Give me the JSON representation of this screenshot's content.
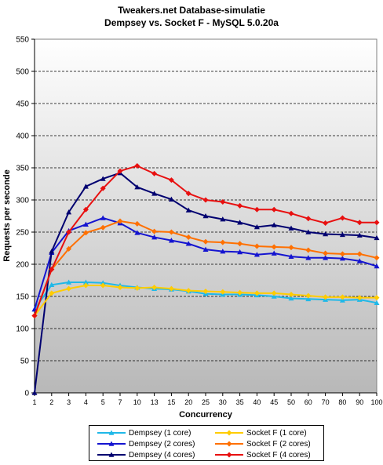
{
  "chart_data": {
    "type": "line",
    "title": "Tweakers.net Database-simulatie",
    "subtitle": "Dempsey vs. Socket F - MySQL 5.0.20a",
    "xlabel": "Concurrency",
    "ylabel": "Requests per seconde",
    "ylim": [
      0,
      550
    ],
    "yticks": [
      0,
      50,
      100,
      150,
      200,
      250,
      300,
      350,
      400,
      450,
      500,
      550
    ],
    "categories": [
      "1",
      "2",
      "3",
      "4",
      "5",
      "7",
      "10",
      "13",
      "15",
      "20",
      "25",
      "30",
      "35",
      "40",
      "45",
      "50",
      "60",
      "70",
      "80",
      "90",
      "100"
    ],
    "grid": "horizontal dashed",
    "background": "gradient white to grey",
    "legend_position": "bottom",
    "series": [
      {
        "name": "Dempsey (1 core)",
        "color": "#1fb8e8",
        "marker": "triangle",
        "values": [
          130,
          168,
          172,
          172,
          171,
          167,
          164,
          162,
          161,
          158,
          154,
          153,
          153,
          152,
          150,
          147,
          146,
          145,
          144,
          145,
          140
        ]
      },
      {
        "name": "Dempsey (2 cores)",
        "color": "#1414d0",
        "marker": "triangle",
        "values": [
          130,
          218,
          252,
          262,
          272,
          264,
          249,
          242,
          237,
          232,
          223,
          220,
          219,
          215,
          217,
          212,
          210,
          210,
          209,
          205,
          197
        ]
      },
      {
        "name": "Dempsey (4 cores)",
        "color": "#000070",
        "marker": "triangle",
        "values": [
          0,
          220,
          281,
          321,
          333,
          342,
          320,
          310,
          301,
          284,
          275,
          270,
          265,
          258,
          261,
          256,
          250,
          247,
          246,
          245,
          241
        ]
      },
      {
        "name": "Socket F (1 core)",
        "color": "#ffcc00",
        "marker": "diamond",
        "values": [
          120,
          155,
          162,
          167,
          167,
          164,
          163,
          164,
          162,
          159,
          158,
          157,
          156,
          155,
          155,
          153,
          151,
          149,
          149,
          148,
          148
        ]
      },
      {
        "name": "Socket F (2 cores)",
        "color": "#ff7000",
        "marker": "diamond",
        "values": [
          120,
          192,
          224,
          249,
          257,
          267,
          263,
          251,
          250,
          242,
          235,
          234,
          232,
          228,
          227,
          226,
          222,
          217,
          216,
          216,
          210
        ]
      },
      {
        "name": "Socket F (4 cores)",
        "color": "#e81010",
        "marker": "diamond",
        "values": [
          120,
          192,
          250,
          285,
          318,
          345,
          353,
          341,
          331,
          310,
          300,
          297,
          291,
          285,
          285,
          279,
          271,
          264,
          272,
          265,
          265
        ]
      }
    ]
  }
}
